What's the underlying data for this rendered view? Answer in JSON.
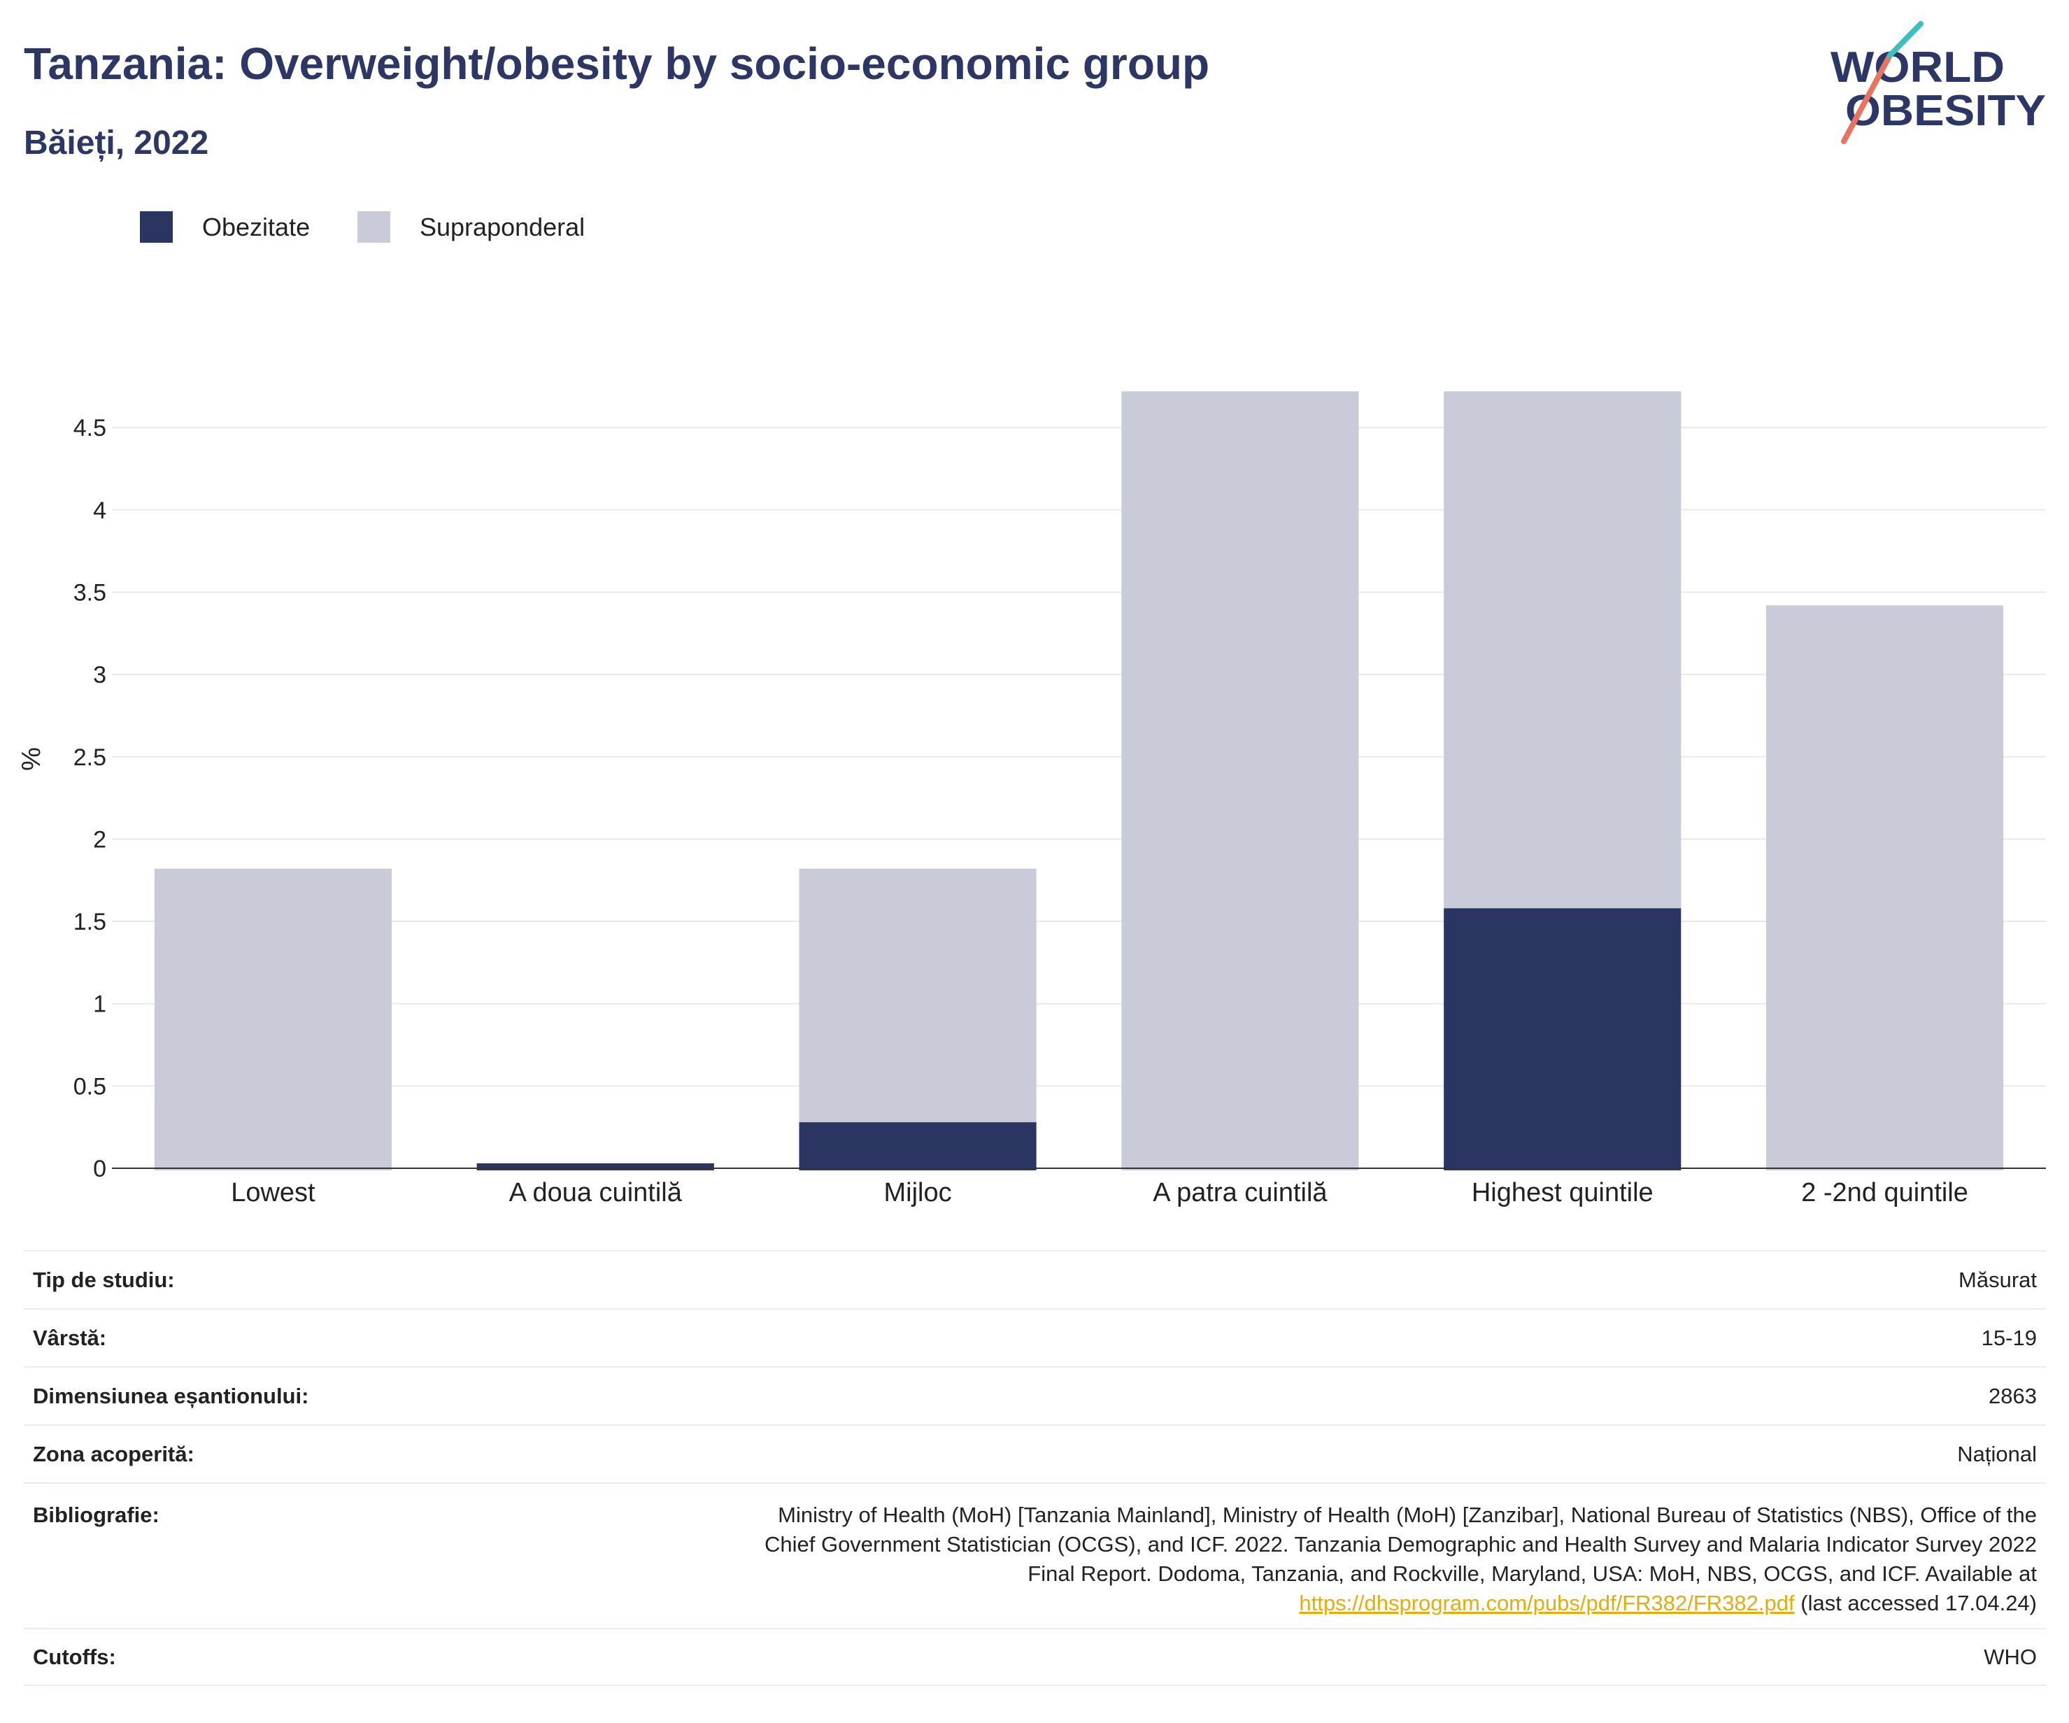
{
  "chart_data": {
    "type": "bar",
    "title": "Tanzania: Overweight/obesity by socio-economic group",
    "subtitle": "Băieți, 2022",
    "xlabel": "",
    "ylabel": "%",
    "categories": [
      "Lowest",
      "A doua cuintilă",
      "Mijloc",
      "A patra cuintilă",
      "Highest quintile",
      "2 -2nd quintile"
    ],
    "stacked": true,
    "series": [
      {
        "name": "Obezitate",
        "color": "#2a3561",
        "values": [
          0,
          0.03,
          0.28,
          0,
          1.58,
          0
        ]
      },
      {
        "name": "Supraponderal",
        "color": "#c9ccd8",
        "values": [
          1.82,
          0,
          1.54,
          4.72,
          3.14,
          3.42
        ]
      }
    ],
    "ylim": [
      0,
      4.75
    ],
    "yticks": [
      0,
      0.5,
      1,
      1.5,
      2,
      2.5,
      3,
      3.5,
      4,
      4.5
    ],
    "grid": true,
    "legend": "top-left"
  },
  "logo": {
    "line1": "WORLD",
    "line2": "OBESITY",
    "text_color": "#2d3766",
    "slash_lower_color": "#e8735e",
    "slash_upper_color": "#3bbfbf"
  },
  "details": {
    "study_type": {
      "label": "Tip de studiu:",
      "value": "Măsurat"
    },
    "age": {
      "label": "Vârstă:",
      "value": "15-19"
    },
    "sample_size": {
      "label": "Dimensiunea eșantionului:",
      "value": "2863"
    },
    "coverage": {
      "label": "Zona acoperită:",
      "value": "Național"
    },
    "bibliography": {
      "label": "Bibliografie:",
      "lines": [
        "Ministry of Health (MoH) [Tanzania Mainland], Ministry of Health (MoH) [Zanzibar], National Bureau of Statistics (NBS), Office of the",
        "Chief Government Statistician (OCGS), and ICF. 2022. Tanzania Demographic and Health Survey and Malaria Indicator Survey 2022",
        "Final Report. Dodoma, Tanzania, and Rockville, Maryland, USA: MoH, NBS, OCGS, and ICF. Available at"
      ],
      "link": "https://dhsprogram.com/pubs/pdf/FR382/FR382.pdf",
      "after": "(last accessed 17.04.24)"
    },
    "cutoffs": {
      "label": "Cutoffs:",
      "value": "WHO"
    }
  }
}
